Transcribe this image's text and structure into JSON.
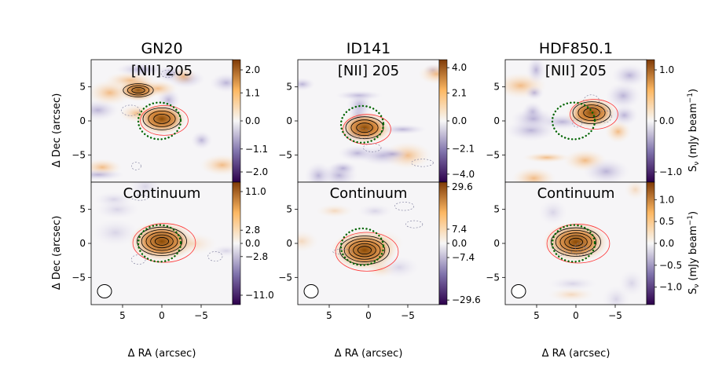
{
  "chart_data": {
    "type": "heatmap",
    "xlabel": "Δ RA (arcsec)",
    "ylabel": "Δ Dec (arcsec)",
    "cbar_label": "Sν (mJy beam⁻¹)",
    "x_ticks": [
      "5",
      "0",
      "−5"
    ],
    "y_ticks": [
      "5",
      "0",
      "−5"
    ],
    "xlim": [
      9,
      -9
    ],
    "ylim": [
      -9,
      9
    ],
    "columns": [
      {
        "name": "GN20",
        "source_center": [
          0.3,
          0.0
        ]
      },
      {
        "name": "ID141",
        "source_center": [
          0.8,
          -0.5
        ]
      },
      {
        "name": "HDF850.1",
        "source_center": [
          0.3,
          0.0
        ]
      }
    ],
    "rows": [
      {
        "label": "[NII] 205"
      },
      {
        "label": "Continuum"
      }
    ],
    "panels": [
      {
        "source": "GN20",
        "row": "[NII] 205",
        "cbar_ticks": [
          "2.0",
          "1.1",
          "0.0",
          "-1.1",
          "-2.0"
        ],
        "cbar_range": [
          -2.4,
          2.4
        ],
        "peaks": [
          {
            "x": 0.0,
            "y": 0.3,
            "value": 2.0
          },
          {
            "x": 3.0,
            "y": 4.5,
            "value": 1.3
          }
        ]
      },
      {
        "source": "ID141",
        "row": "[NII] 205",
        "cbar_ticks": [
          "4.0",
          "2.1",
          "0.0",
          "-2.1",
          "-4.0"
        ],
        "cbar_range": [
          -4.6,
          4.6
        ],
        "peaks": [
          {
            "x": 0.5,
            "y": -1.0,
            "value": 4.0
          }
        ]
      },
      {
        "source": "HDF850.1",
        "row": "[NII] 205",
        "cbar_ticks": [
          "1.0",
          "0.0",
          "-1.0"
        ],
        "cbar_range": [
          -1.2,
          1.2
        ],
        "peaks": [
          {
            "x": -2.0,
            "y": 1.2,
            "value": 1.0
          }
        ]
      },
      {
        "source": "GN20",
        "row": "Continuum",
        "cbar_ticks": [
          "11.0",
          "2.8",
          "0.0",
          "-2.8",
          "-11.0"
        ],
        "cbar_range": [
          -13.0,
          13.0
        ],
        "peaks": [
          {
            "x": 0.0,
            "y": 0.3,
            "value": 11.0
          }
        ]
      },
      {
        "source": "ID141",
        "row": "Continuum",
        "cbar_ticks": [
          "29.6",
          "7.4",
          "0.0",
          "-7.4",
          "-29.6"
        ],
        "cbar_range": [
          -32.0,
          32.0
        ],
        "peaks": [
          {
            "x": 0.5,
            "y": -1.0,
            "value": 29.6
          }
        ]
      },
      {
        "source": "HDF850.1",
        "row": "Continuum",
        "cbar_ticks": [
          "1.0",
          "0.5",
          "0.0",
          "-0.5",
          "-1.0"
        ],
        "cbar_range": [
          -1.4,
          1.4
        ],
        "peaks": [
          {
            "x": 0.0,
            "y": 0.2,
            "value": 1.0
          }
        ]
      }
    ],
    "colormap": "PuOr (purple negative, orange positive)",
    "overlays": [
      "green dotted circle at source position",
      "black contours",
      "red contours",
      "white beam ellipse"
    ]
  },
  "colors": {
    "positive": "#8a4a05",
    "negative": "#3b0f6f",
    "circle": "#006400",
    "contour": "#000000",
    "red_contour": "#ff3333"
  }
}
